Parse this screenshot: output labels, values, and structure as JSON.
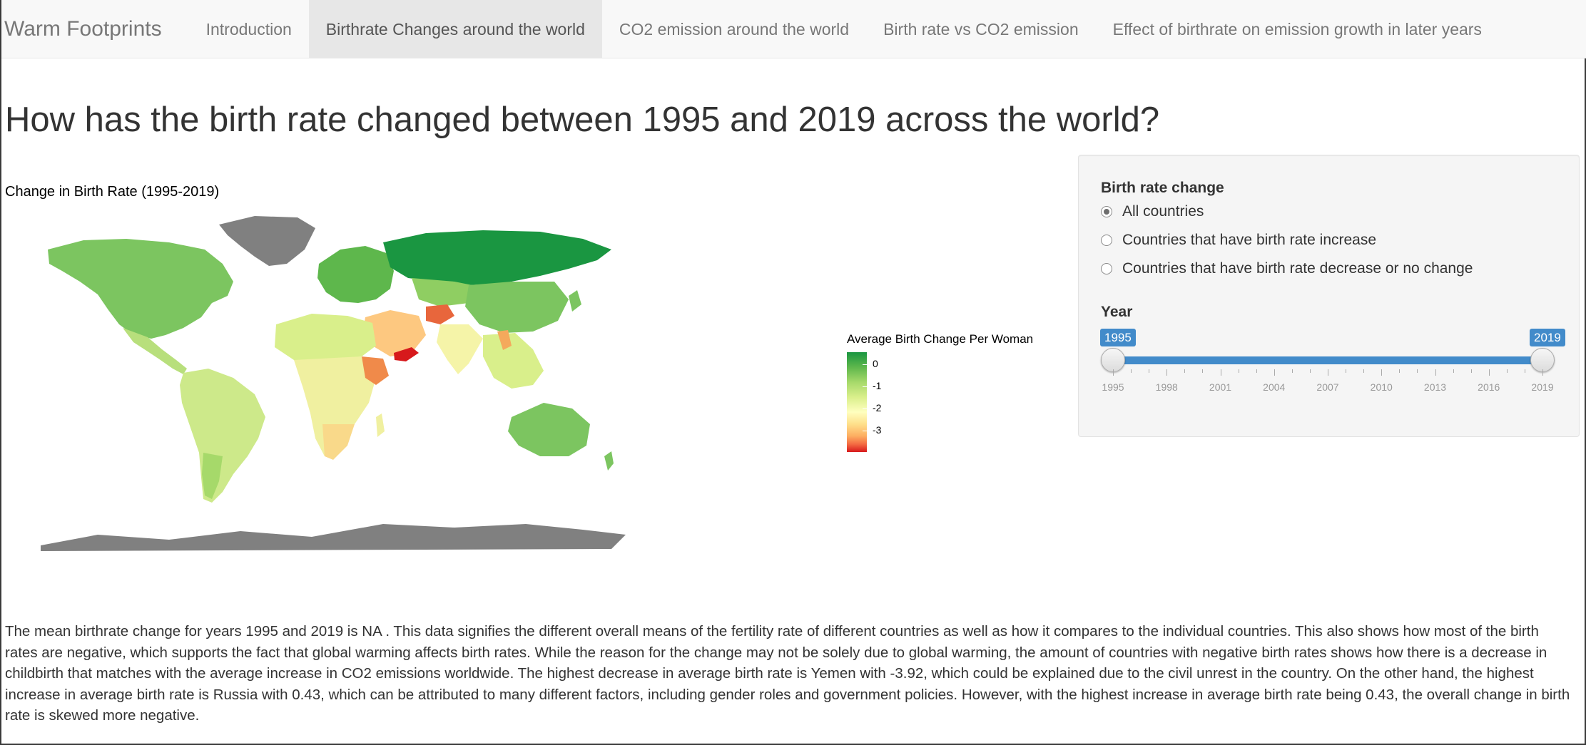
{
  "navbar": {
    "brand": "Warm Footprints",
    "tabs": [
      {
        "label": "Introduction"
      },
      {
        "label": "Birthrate Changes around the world"
      },
      {
        "label": "CO2 emission around the world"
      },
      {
        "label": "Birth rate vs CO2 emission"
      },
      {
        "label": "Effect of birthrate on emission growth in later years"
      }
    ],
    "active_tab_index": 1
  },
  "page_title": "How has the birth rate changed between 1995 and 2019 across the world?",
  "map": {
    "title": "Change in Birth Rate (1995-2019)",
    "legend": {
      "title": "Average Birth Change Per Woman",
      "ticks": [
        "0",
        "-1",
        "-2",
        "-3"
      ]
    },
    "colors": {
      "high": "#1a9641",
      "mid": "#ffffbf",
      "low": "#d7191c",
      "no_data": "#808080"
    }
  },
  "sidebar": {
    "birth_rate_label": "Birth rate change",
    "options": [
      {
        "label": "All countries",
        "checked": true
      },
      {
        "label": "Countries that have birth rate increase",
        "checked": false
      },
      {
        "label": "Countries that have birth rate decrease or no change",
        "checked": false
      }
    ],
    "year_label": "Year",
    "slider": {
      "min": 1995,
      "max": 2019,
      "from": "1995",
      "to": "2019",
      "grid_labels": [
        "1995",
        "1998",
        "2001",
        "2004",
        "2007",
        "2010",
        "2013",
        "2016",
        "2019"
      ]
    }
  },
  "description": "The mean birthrate change for years 1995 and 2019 is NA . This data signifies the different overall means of the fertility rate of different countries as well as how it compares to the individual countries. This also shows how most of the birth rates are negative, which supports the fact that global warming affects birth rates. While the reason for the change may not be solely due to global warming, the amount of countries with negative birth rates shows how there is a decrease in childbirth that matches with the average increase in CO2 emissions worldwide. The highest decrease in average birth rate is Yemen with -3.92, which could be explained due to the civil unrest in the country. On the other hand, the highest increase in average birth rate is Russia with 0.43, which can be attributed to many different factors, including gender roles and government policies. However, with the highest increase in average birth rate being 0.43, the overall change in birth rate is skewed more negative."
}
